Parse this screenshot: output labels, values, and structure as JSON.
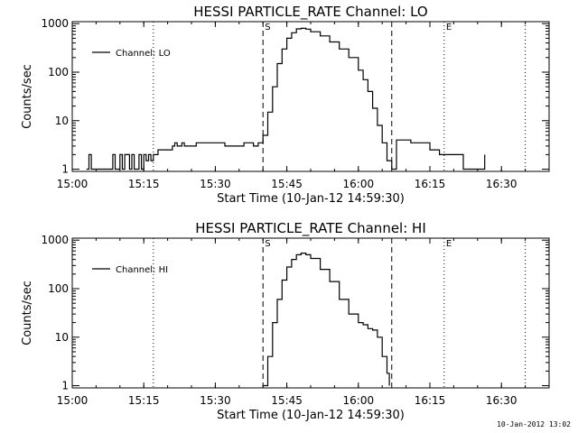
{
  "stamp": "10-Jan-2012 13:02",
  "chart_data": [
    {
      "type": "line",
      "title": "HESSI PARTICLE_RATE Channel: LO",
      "xlabel": "Start Time (10-Jan-12 14:59:30)",
      "ylabel": "Counts/sec",
      "yscale": "log",
      "xlim": [
        "15:00",
        "16:40"
      ],
      "ylim": [
        0.9,
        1100
      ],
      "xticks": [
        "15:00",
        "15:15",
        "15:30",
        "15:45",
        "16:00",
        "16:15",
        "16:30"
      ],
      "yticks": [
        "1",
        "10",
        "100",
        "1000"
      ],
      "legend": {
        "label": "Channel: LO",
        "position": "top-left"
      },
      "markers": [
        {
          "time": "15:40",
          "label": "S",
          "style": "dashed"
        },
        {
          "time": "16:07",
          "label": "",
          "style": "dashed"
        },
        {
          "time": "15:17",
          "label": "",
          "style": "dotted"
        },
        {
          "time": "16:18",
          "label": "E",
          "style": "dotted"
        },
        {
          "time": "16:35",
          "label": "",
          "style": "dotted"
        }
      ],
      "series": [
        {
          "name": "Channel: LO",
          "x": [
            "15:03",
            "15:03:30",
            "15:04",
            "15:08",
            "15:08:30",
            "15:09",
            "15:10",
            "15:10:30",
            "15:11",
            "15:12",
            "15:12:30",
            "15:13",
            "15:14",
            "15:14:30",
            "15:15",
            "15:15:30",
            "15:16",
            "15:16:30",
            "15:17",
            "15:18",
            "15:19",
            "15:21",
            "15:21:30",
            "15:22",
            "15:23",
            "15:23:30",
            "15:24",
            "15:26",
            "15:28",
            "15:30",
            "15:32",
            "15:34",
            "15:36",
            "15:38",
            "15:39",
            "15:40",
            "15:41",
            "15:42",
            "15:43",
            "15:44",
            "15:45",
            "15:46",
            "15:47",
            "15:48",
            "15:49",
            "15:50",
            "15:52",
            "15:54",
            "15:56",
            "15:58",
            "16:00",
            "16:01",
            "16:02",
            "16:03",
            "16:04",
            "16:05",
            "16:06",
            "16:07",
            "16:08",
            "16:09",
            "16:10",
            "16:11",
            "16:13",
            "16:15",
            "16:17",
            "16:19",
            "16:20",
            "16:22",
            "16:24",
            "16:26",
            "16:26:30"
          ],
          "y": [
            1,
            2,
            1,
            1,
            2,
            1,
            2,
            1,
            2,
            1,
            2,
            1,
            2,
            1,
            2,
            1.5,
            2,
            1.5,
            2,
            2.5,
            2.5,
            3,
            3.5,
            3,
            3.5,
            3,
            3,
            3.5,
            3.5,
            3.5,
            3,
            3,
            3.5,
            3,
            3.5,
            5,
            15,
            50,
            150,
            300,
            500,
            650,
            780,
            800,
            770,
            680,
            560,
            420,
            300,
            200,
            110,
            70,
            40,
            18,
            8,
            3.5,
            1.5,
            1,
            4,
            4,
            4,
            3.5,
            3.5,
            2.5,
            2,
            2,
            2,
            1,
            1,
            1,
            2
          ]
        }
      ]
    },
    {
      "type": "line",
      "title": "HESSI PARTICLE_RATE Channel: HI",
      "xlabel": "Start Time (10-Jan-12 14:59:30)",
      "ylabel": "Counts/sec",
      "yscale": "log",
      "xlim": [
        "15:00",
        "16:40"
      ],
      "ylim": [
        0.9,
        1100
      ],
      "xticks": [
        "15:00",
        "15:15",
        "15:30",
        "15:45",
        "16:00",
        "16:15",
        "16:30"
      ],
      "yticks": [
        "1",
        "10",
        "100",
        "1000"
      ],
      "legend": {
        "label": "Channel: HI",
        "position": "top-left"
      },
      "markers": [
        {
          "time": "15:40",
          "label": "S",
          "style": "dashed"
        },
        {
          "time": "16:07",
          "label": "",
          "style": "dashed"
        },
        {
          "time": "15:17",
          "label": "",
          "style": "dotted"
        },
        {
          "time": "16:18",
          "label": "E",
          "style": "dotted"
        },
        {
          "time": "16:35",
          "label": "",
          "style": "dotted"
        }
      ],
      "series": [
        {
          "name": "Channel: HI",
          "x": [
            "15:40",
            "15:41",
            "15:42",
            "15:43",
            "15:44",
            "15:45",
            "15:46",
            "15:47",
            "15:48",
            "15:49",
            "15:50",
            "15:52",
            "15:54",
            "15:56",
            "15:58",
            "16:00",
            "16:01",
            "16:02",
            "16:03",
            "16:04",
            "16:05",
            "16:06",
            "16:06:30"
          ],
          "y": [
            1,
            4,
            20,
            60,
            150,
            280,
            400,
            500,
            540,
            500,
            420,
            250,
            140,
            60,
            30,
            20,
            18,
            15,
            14,
            10,
            4,
            1.8,
            1
          ]
        }
      ]
    }
  ]
}
